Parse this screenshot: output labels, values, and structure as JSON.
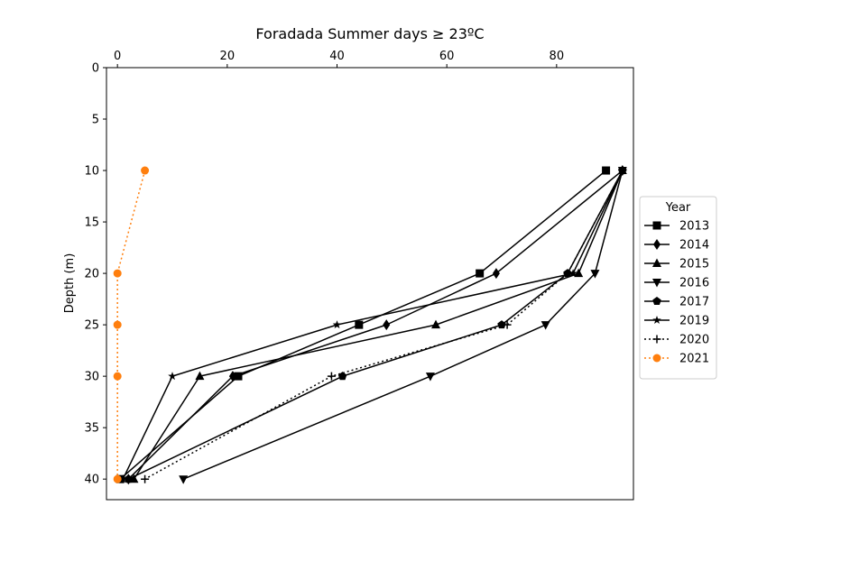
{
  "chart_data": {
    "type": "line",
    "title": "Foradada Summer days ≥ 23ºC",
    "xlabel": "",
    "ylabel": "Depth (m)",
    "xlim": [
      -2,
      94
    ],
    "ylim": [
      42,
      0
    ],
    "x_ticks": [
      0,
      20,
      40,
      60,
      80
    ],
    "y_ticks": [
      0,
      5,
      10,
      15,
      20,
      25,
      30,
      35,
      40
    ],
    "x_axis_position": "top",
    "y_inverted": true,
    "grid": false,
    "legend": {
      "title": "Year",
      "placement": "outside-right"
    },
    "depths": [
      10,
      20,
      25,
      30,
      40
    ],
    "series": [
      {
        "name": "2013",
        "marker": "square",
        "linestyle": "solid",
        "color": "#000000",
        "x": [
          89,
          66,
          44,
          22,
          0.5
        ],
        "y": [
          10,
          20,
          25,
          30,
          40
        ]
      },
      {
        "name": "2014",
        "marker": "diamond",
        "linestyle": "solid",
        "color": "#000000",
        "x": [
          92,
          69,
          49,
          21,
          2
        ],
        "y": [
          10,
          20,
          25,
          30,
          40
        ]
      },
      {
        "name": "2015",
        "marker": "triangle-up",
        "linestyle": "solid",
        "color": "#000000",
        "x": [
          92,
          84,
          58,
          15,
          3
        ],
        "y": [
          10,
          20,
          25,
          30,
          40
        ]
      },
      {
        "name": "2016",
        "marker": "triangle-down",
        "linestyle": "solid",
        "color": "#000000",
        "x": [
          92,
          87,
          78,
          57,
          12
        ],
        "y": [
          10,
          20,
          25,
          30,
          40
        ]
      },
      {
        "name": "2017",
        "marker": "pentagon",
        "linestyle": "solid",
        "color": "#000000",
        "x": [
          92,
          82,
          70,
          41,
          2
        ],
        "y": [
          10,
          20,
          25,
          30,
          40
        ]
      },
      {
        "name": "2019",
        "marker": "star",
        "linestyle": "solid",
        "color": "#000000",
        "x": [
          92,
          83,
          40,
          10,
          1
        ],
        "y": [
          10,
          20,
          25,
          30,
          40
        ]
      },
      {
        "name": "2020",
        "marker": "plus",
        "linestyle": "dotted",
        "color": "#000000",
        "x": [
          92,
          82,
          71,
          39,
          5
        ],
        "y": [
          10,
          20,
          25,
          30,
          40
        ]
      },
      {
        "name": "2021",
        "marker": "circle",
        "linestyle": "dotted",
        "color": "#ff7f0e",
        "x": [
          5,
          0,
          0,
          0,
          0
        ],
        "y": [
          10,
          20,
          25,
          30,
          40
        ]
      }
    ]
  }
}
